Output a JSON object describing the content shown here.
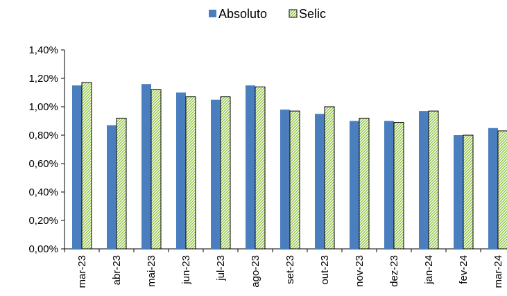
{
  "chart_data": {
    "type": "bar",
    "title": "",
    "xlabel": "",
    "ylabel": "",
    "ylim": [
      0,
      1.4
    ],
    "y_ticks": [
      "0,00%",
      "0,20%",
      "0,40%",
      "0,60%",
      "0,80%",
      "1,00%",
      "1,20%",
      "1,40%"
    ],
    "grid": false,
    "legend_position": "top",
    "categories": [
      "mar-23",
      "abr-23",
      "mai-23",
      "jun-23",
      "jul-23",
      "ago-23",
      "set-23",
      "out-23",
      "nov-23",
      "dez-23",
      "jan-24",
      "fev-24",
      "mar-24"
    ],
    "series": [
      {
        "name": "Absoluto",
        "color": "#4a7ebf",
        "values": [
          1.15,
          0.87,
          1.16,
          1.1,
          1.05,
          1.15,
          0.98,
          0.95,
          0.9,
          0.9,
          0.97,
          0.8,
          0.85
        ]
      },
      {
        "name": "Selic",
        "color": "#8fc43f",
        "pattern": "diagonal-hatch",
        "values": [
          1.17,
          0.92,
          1.12,
          1.07,
          1.07,
          1.14,
          0.97,
          1.0,
          0.92,
          0.89,
          0.97,
          0.8,
          0.83
        ]
      }
    ]
  }
}
